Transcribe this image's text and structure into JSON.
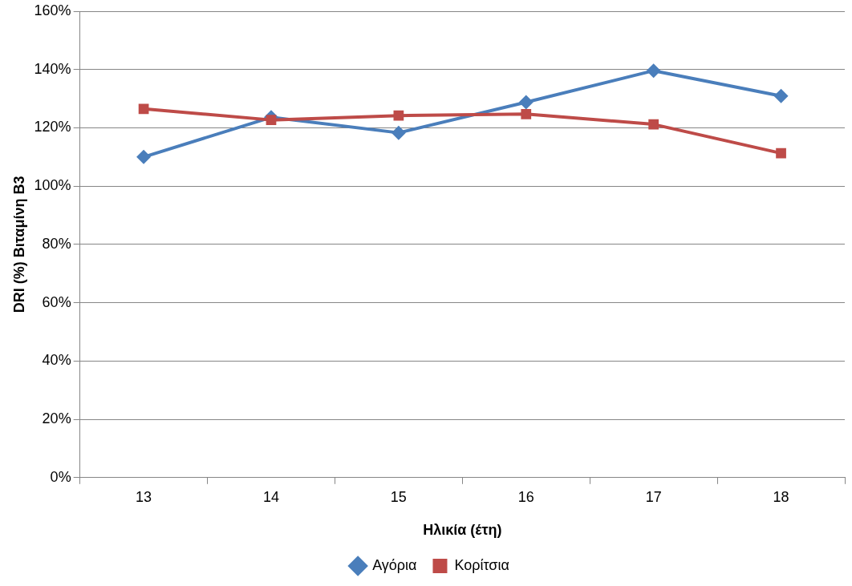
{
  "chart_data": {
    "type": "line",
    "xlabel": "Ηλικία (έτη)",
    "ylabel": "DRI (%) Βιταμίνη Β3",
    "categories": [
      "13",
      "14",
      "15",
      "16",
      "17",
      "18"
    ],
    "series": [
      {
        "name": "Αγόρια",
        "color": "#4a7ebb",
        "marker": "diamond",
        "values": [
          110,
          123.6,
          118.3,
          128.8,
          139.6,
          130.9
        ]
      },
      {
        "name": "Κορίτσια",
        "color": "#be4b48",
        "marker": "square",
        "values": [
          126.5,
          122.7,
          124.2,
          124.7,
          121.2,
          111.3
        ]
      }
    ],
    "ylim": [
      0,
      160
    ],
    "yticks": [
      {
        "value": 0,
        "label": "0%"
      },
      {
        "value": 20,
        "label": "20%"
      },
      {
        "value": 40,
        "label": "40%"
      },
      {
        "value": 60,
        "label": "60%"
      },
      {
        "value": 80,
        "label": "80%"
      },
      {
        "value": 100,
        "label": "100%"
      },
      {
        "value": 120,
        "label": "120%"
      },
      {
        "value": 140,
        "label": "140%"
      },
      {
        "value": 160,
        "label": "160%"
      }
    ],
    "grid": "y",
    "legend": "bottom",
    "line_style": "solid"
  }
}
